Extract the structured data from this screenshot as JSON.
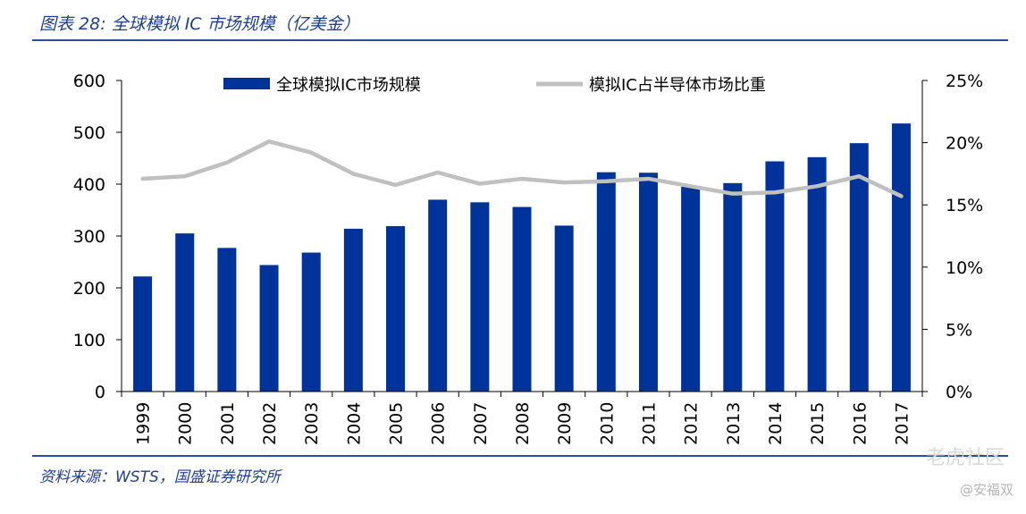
{
  "header": {
    "figure_title": "图表 28:  全球模拟 IC 市场规模（亿美金）"
  },
  "footer": {
    "source": "资料来源：WSTS，国盛证券研究所",
    "watermark": "老虎社区",
    "watermark_author": "@安福双"
  },
  "chart_data": {
    "type": "bar",
    "categories": [
      "1999",
      "2000",
      "2001",
      "2002",
      "2003",
      "2004",
      "2005",
      "2006",
      "2007",
      "2008",
      "2009",
      "2010",
      "2011",
      "2012",
      "2013",
      "2014",
      "2015",
      "2016",
      "2017"
    ],
    "series": [
      {
        "name": "全球模拟IC市场规模",
        "type": "bar",
        "axis": "left",
        "color": "#003399",
        "values": [
          222,
          305,
          277,
          244,
          268,
          314,
          319,
          370,
          365,
          356,
          320,
          423,
          422,
          395,
          402,
          444,
          452,
          479,
          517
        ]
      },
      {
        "name": "模拟IC占半导体市场比重",
        "type": "line",
        "axis": "right",
        "unit": "%",
        "color": "#c0c0c0",
        "values": [
          17.1,
          17.3,
          18.4,
          20.1,
          19.2,
          17.5,
          16.6,
          17.6,
          16.7,
          17.1,
          16.8,
          16.9,
          17.1,
          16.5,
          15.9,
          16.0,
          16.5,
          17.3,
          15.7
        ]
      }
    ],
    "y_left": {
      "ticks": [
        "0",
        "100",
        "200",
        "300",
        "400",
        "500",
        "600"
      ],
      "lim": [
        0,
        600
      ]
    },
    "y_right": {
      "ticks": [
        "0%",
        "5%",
        "10%",
        "15%",
        "20%",
        "25%"
      ],
      "lim": [
        0,
        25
      ]
    },
    "grid": false,
    "legend_position": "top",
    "xtick_rotation": "vertical"
  }
}
